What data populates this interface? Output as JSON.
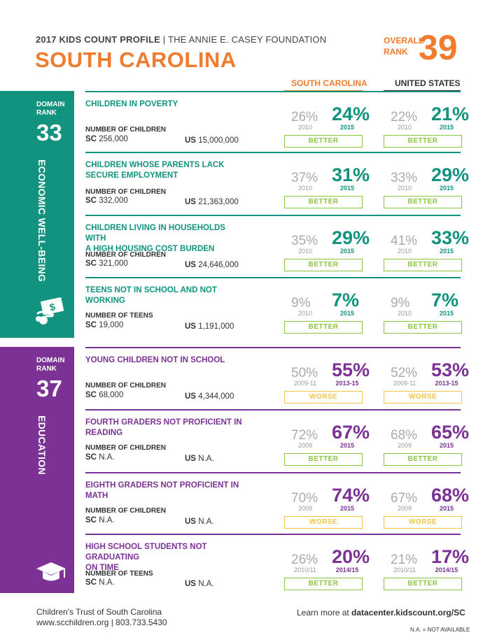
{
  "header": {
    "profile": "2017 KIDS COUNT PROFILE",
    "separator": "|",
    "foundation": "THE ANNIE E. CASEY FOUNDATION",
    "state": "SOUTH CAROLINA",
    "overall_label_1": "OVERALL",
    "overall_label_2": "RANK",
    "overall_rank": "39"
  },
  "columns": {
    "sc": "SOUTH CAROLINA",
    "us": "UNITED STATES"
  },
  "colors": {
    "orange": "#f07c2f",
    "teal": "#12937f",
    "purple": "#7b3294",
    "better": "#8cc63f",
    "worse": "#f3c44a"
  },
  "domains": [
    {
      "label_1": "DOMAIN",
      "label_2": "RANK",
      "rank": "33",
      "name": "ECONOMIC WELL-BEING",
      "icon": "money-hand-icon",
      "indicators": [
        {
          "name_1": "CHILDREN IN POVERTY",
          "name_2": "",
          "count_label": "NUMBER OF CHILDREN",
          "sc_prefix": "SC",
          "sc_count": "256,000",
          "us_prefix": "US",
          "us_count": "15,000,000",
          "sc_old": "26%",
          "sc_old_year": "2010",
          "sc_new": "24%",
          "sc_new_year": "2015",
          "sc_trend": "BETTER",
          "us_old": "22%",
          "us_old_year": "2010",
          "us_new": "21%",
          "us_new_year": "2015",
          "us_trend": "BETTER"
        },
        {
          "name_1": "CHILDREN WHOSE PARENTS LACK",
          "name_2": "SECURE EMPLOYMENT",
          "count_label": "NUMBER OF CHILDREN",
          "sc_prefix": "SC",
          "sc_count": "332,000",
          "us_prefix": "US",
          "us_count": "21,363,000",
          "sc_old": "37%",
          "sc_old_year": "2010",
          "sc_new": "31%",
          "sc_new_year": "2015",
          "sc_trend": "BETTER",
          "us_old": "33%",
          "us_old_year": "2010",
          "us_new": "29%",
          "us_new_year": "2015",
          "us_trend": "BETTER"
        },
        {
          "name_1": "CHILDREN LIVING IN HOUSEHOLDS WITH",
          "name_2": "A HIGH HOUSING COST BURDEN",
          "count_label": "NUMBER OF CHILDREN",
          "sc_prefix": "SC",
          "sc_count": "321,000",
          "us_prefix": "US",
          "us_count": "24,646,000",
          "sc_old": "35%",
          "sc_old_year": "2010",
          "sc_new": "29%",
          "sc_new_year": "2015",
          "sc_trend": "BETTER",
          "us_old": "41%",
          "us_old_year": "2010",
          "us_new": "33%",
          "us_new_year": "2015",
          "us_trend": "BETTER"
        },
        {
          "name_1": "TEENS NOT IN SCHOOL AND NOT WORKING",
          "name_2": "",
          "count_label": "NUMBER OF TEENS",
          "sc_prefix": "SC",
          "sc_count": "19,000",
          "us_prefix": "US",
          "us_count": "1,191,000",
          "sc_old": "9%",
          "sc_old_year": "2010",
          "sc_new": "7%",
          "sc_new_year": "2015",
          "sc_trend": "BETTER",
          "us_old": "9%",
          "us_old_year": "2010",
          "us_new": "7%",
          "us_new_year": "2015",
          "us_trend": "BETTER"
        }
      ]
    },
    {
      "label_1": "DOMAIN",
      "label_2": "RANK",
      "rank": "37",
      "name": "EDUCATION",
      "icon": "graduation-cap-icon",
      "indicators": [
        {
          "name_1": "YOUNG CHILDREN NOT IN SCHOOL",
          "name_2": "",
          "count_label": "NUMBER OF CHILDREN",
          "sc_prefix": "SC",
          "sc_count": "68,000",
          "us_prefix": "US",
          "us_count": "4,344,000",
          "sc_old": "50%",
          "sc_old_year": "2009-11",
          "sc_new": "55%",
          "sc_new_year": "2013-15",
          "sc_trend": "WORSE",
          "us_old": "52%",
          "us_old_year": "2009-11",
          "us_new": "53%",
          "us_new_year": "2013-15",
          "us_trend": "WORSE"
        },
        {
          "name_1": "FOURTH GRADERS NOT PROFICIENT IN READING",
          "name_2": "",
          "count_label": "NUMBER OF CHILDREN",
          "sc_prefix": "SC",
          "sc_count": "N.A.",
          "us_prefix": "US",
          "us_count": "N.A.",
          "sc_old": "72%",
          "sc_old_year": "2009",
          "sc_new": "67%",
          "sc_new_year": "2015",
          "sc_trend": "BETTER",
          "us_old": "68%",
          "us_old_year": "2009",
          "us_new": "65%",
          "us_new_year": "2015",
          "us_trend": "BETTER"
        },
        {
          "name_1": "EIGHTH GRADERS NOT PROFICIENT IN MATH",
          "name_2": "",
          "count_label": "NUMBER OF CHILDREN",
          "sc_prefix": "SC",
          "sc_count": "N.A.",
          "us_prefix": "US",
          "us_count": "N.A.",
          "sc_old": "70%",
          "sc_old_year": "2009",
          "sc_new": "74%",
          "sc_new_year": "2015",
          "sc_trend": "WORSE",
          "us_old": "67%",
          "us_old_year": "2009",
          "us_new": "68%",
          "us_new_year": "2015",
          "us_trend": "WORSE"
        },
        {
          "name_1": "HIGH SCHOOL STUDENTS NOT GRADUATING",
          "name_2": "ON TIME",
          "count_label": "NUMBER OF TEENS",
          "sc_prefix": "SC",
          "sc_count": "N.A.",
          "us_prefix": "US",
          "us_count": "N.A.",
          "sc_old": "26%",
          "sc_old_year": "2010/11",
          "sc_new": "20%",
          "sc_new_year": "2014/15",
          "sc_trend": "BETTER",
          "us_old": "21%",
          "us_old_year": "2010/11",
          "us_new": "17%",
          "us_new_year": "2014/15",
          "us_trend": "BETTER"
        }
      ]
    }
  ],
  "footer": {
    "org": "Children's Trust of South Carolina",
    "contact": "www.scchildren.org | 803.733.5430",
    "learn_prefix": "Learn more at ",
    "learn_url": "datacenter.kidscount.org/SC",
    "na_note": "N.A. = NOT AVAILABLE"
  }
}
